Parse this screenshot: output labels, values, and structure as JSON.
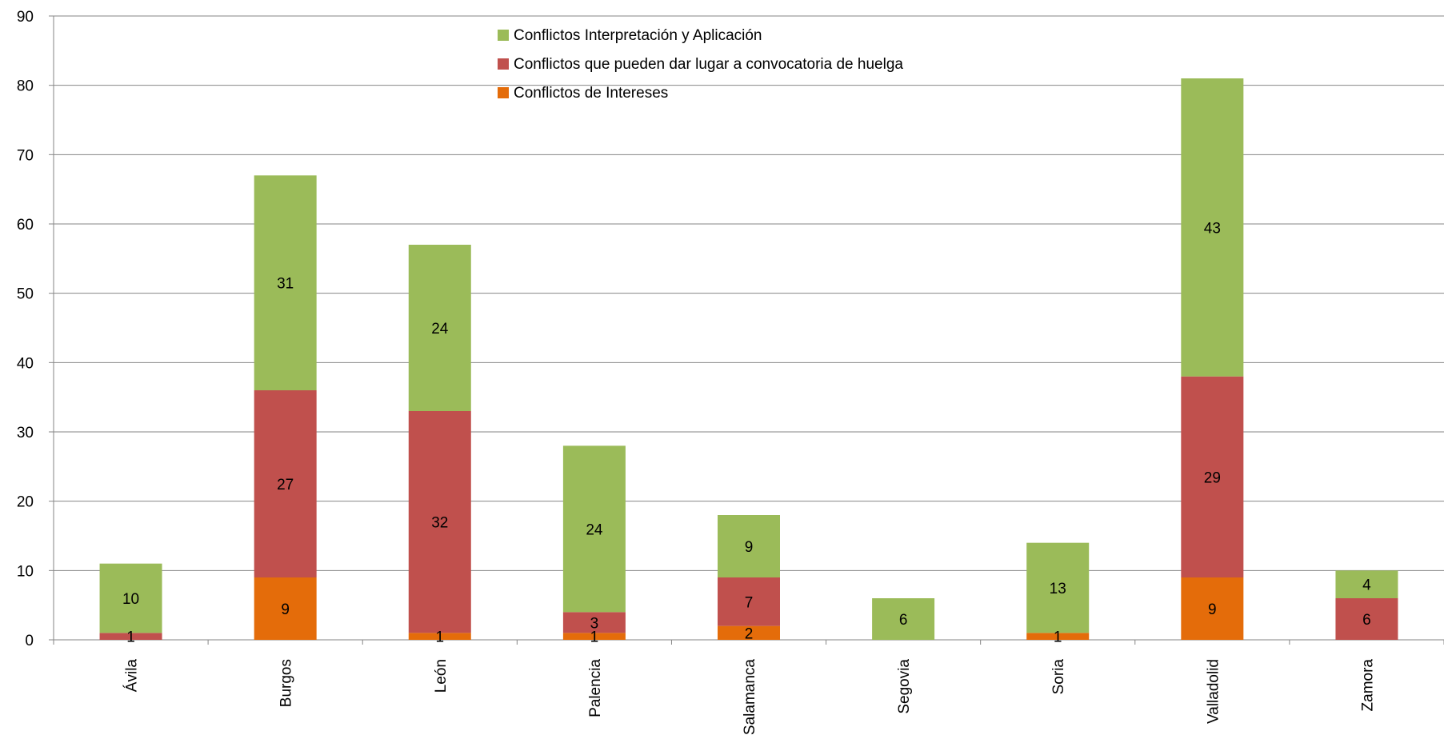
{
  "chart_data": {
    "type": "bar",
    "stacked": true,
    "categories": [
      "Ávila",
      "Burgos",
      "León",
      "Palencia",
      "Salamanca",
      "Segovia",
      "Soria",
      "Valladolid",
      "Zamora"
    ],
    "series": [
      {
        "name": "Conflictos de Intereses",
        "color": "#E46C0A",
        "values": [
          0,
          9,
          1,
          1,
          2,
          0,
          1,
          9,
          0
        ],
        "labels": [
          "",
          "9",
          "1",
          "1",
          "2",
          "",
          "1",
          "9",
          ""
        ]
      },
      {
        "name": "Conflictos que pueden dar lugar a convocatoria de huelga",
        "color": "#C0504D",
        "values": [
          1,
          27,
          32,
          3,
          7,
          0,
          0,
          29,
          6
        ],
        "labels": [
          "1",
          "27",
          "32",
          "3",
          "7",
          "",
          "",
          "29",
          "6"
        ]
      },
      {
        "name": "Conflictos Interpretación y Aplicación",
        "color": "#9BBB59",
        "values": [
          10,
          31,
          24,
          24,
          9,
          6,
          13,
          43,
          4
        ],
        "labels": [
          "10",
          "31",
          "24",
          "24",
          "9",
          "6",
          "13",
          "43",
          "4"
        ]
      }
    ],
    "yticks": [
      "0",
      "10",
      "20",
      "30",
      "40",
      "50",
      "60",
      "70",
      "80",
      "90"
    ],
    "ylim": [
      0,
      90
    ],
    "grid": true,
    "legend": {
      "position": "top-center",
      "order": [
        2,
        1,
        0
      ]
    },
    "title": "",
    "xlabel": "",
    "ylabel": ""
  }
}
